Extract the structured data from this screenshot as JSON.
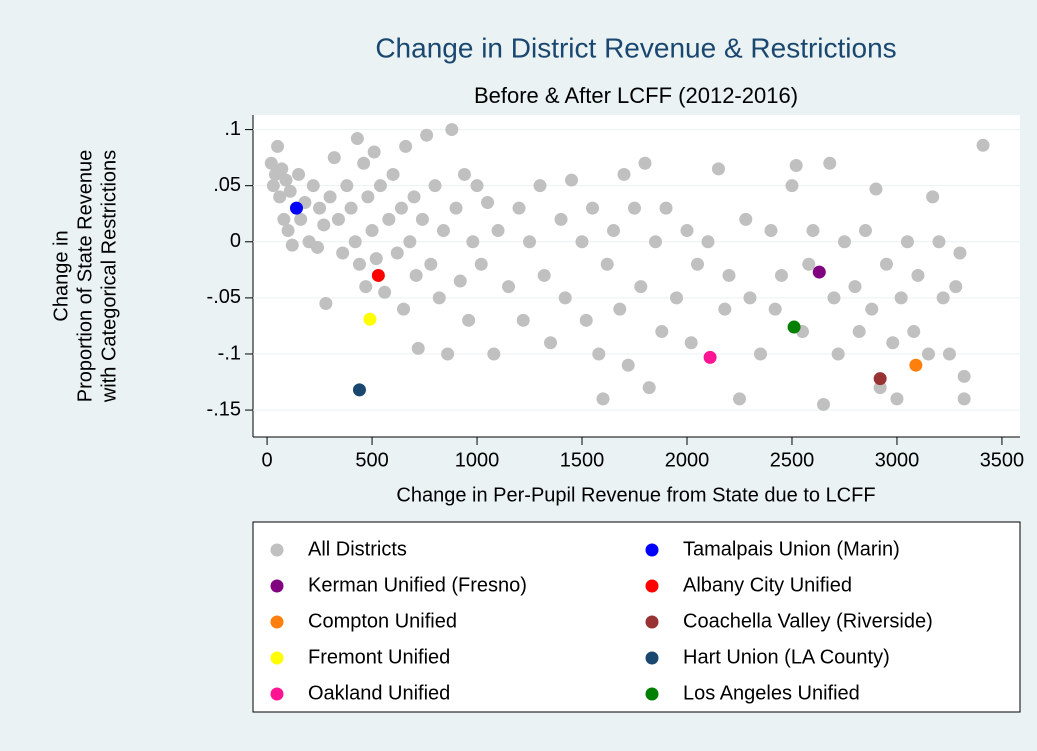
{
  "chart_data": {
    "type": "scatter",
    "title": "Change in District Revenue & Restrictions",
    "subtitle": "Before & After LCFF (2012-2016)",
    "xlabel": "Change in Per-Pupil Revenue from State due to LCFF",
    "ylabel": [
      "Change in",
      "Proportion of State Revenue",
      "with Categorical Restrictions"
    ],
    "xlim": [
      -67,
      3586
    ],
    "ylim": [
      -0.174,
      0.113
    ],
    "xticks": [
      0,
      500,
      1000,
      1500,
      2000,
      2500,
      3000,
      3500
    ],
    "yticks": [
      {
        "value": 0.1,
        "label": ".1"
      },
      {
        "value": 0.05,
        "label": ".05"
      },
      0,
      {
        "value": -0.05,
        "label": "-.05"
      },
      {
        "value": -0.1,
        "label": "-.1"
      },
      {
        "value": -0.15,
        "label": "-.15"
      }
    ],
    "grid": true,
    "legend": "bottom",
    "series": [
      {
        "name": "All Districts",
        "color": "#c0c0c0",
        "x": [
          20,
          30,
          40,
          50,
          60,
          70,
          80,
          90,
          100,
          110,
          120,
          150,
          160,
          180,
          200,
          220,
          240,
          250,
          270,
          280,
          300,
          320,
          340,
          360,
          380,
          400,
          420,
          430,
          440,
          460,
          470,
          480,
          500,
          510,
          520,
          540,
          560,
          580,
          600,
          620,
          640,
          650,
          660,
          680,
          700,
          710,
          720,
          740,
          760,
          780,
          800,
          820,
          840,
          860,
          880,
          900,
          920,
          940,
          960,
          980,
          1000,
          1020,
          1050,
          1080,
          1100,
          1150,
          1200,
          1220,
          1250,
          1300,
          1320,
          1350,
          1400,
          1420,
          1450,
          1500,
          1520,
          1550,
          1580,
          1600,
          1620,
          1650,
          1680,
          1700,
          1720,
          1750,
          1780,
          1800,
          1820,
          1850,
          1880,
          1900,
          1950,
          2000,
          2020,
          2050,
          2100,
          2150,
          2180,
          2200,
          2250,
          2280,
          2300,
          2350,
          2400,
          2420,
          2450,
          2500,
          2520,
          2550,
          2580,
          2600,
          2650,
          2680,
          2700,
          2720,
          2750,
          2800,
          2820,
          2850,
          2880,
          2900,
          2920,
          2950,
          2980,
          3000,
          3020,
          3050,
          3080,
          3100,
          3150,
          3170,
          3200,
          3220,
          3250,
          3280,
          3300,
          3320,
          3320,
          3410
        ],
        "values": [
          0.07,
          0.05,
          0.06,
          0.085,
          0.04,
          0.065,
          0.02,
          0.055,
          0.01,
          0.045,
          -0.003,
          0.06,
          0.02,
          0.035,
          0.0,
          0.05,
          -0.005,
          0.03,
          0.015,
          -0.055,
          0.04,
          0.075,
          0.02,
          -0.01,
          0.05,
          0.03,
          0.0,
          0.092,
          -0.02,
          0.07,
          -0.04,
          0.04,
          0.01,
          0.08,
          -0.015,
          0.05,
          -0.045,
          0.02,
          0.06,
          -0.01,
          0.03,
          -0.06,
          0.085,
          0.0,
          0.04,
          -0.03,
          -0.095,
          0.02,
          0.095,
          -0.02,
          0.05,
          -0.05,
          0.01,
          -0.1,
          0.1,
          0.03,
          -0.035,
          0.06,
          -0.07,
          0.0,
          0.05,
          -0.02,
          0.035,
          -0.1,
          0.01,
          -0.04,
          0.03,
          -0.07,
          0.0,
          0.05,
          -0.03,
          -0.09,
          0.02,
          -0.05,
          0.055,
          0.0,
          -0.07,
          0.03,
          -0.1,
          -0.14,
          -0.02,
          0.01,
          -0.06,
          0.06,
          -0.11,
          0.03,
          -0.04,
          0.07,
          -0.13,
          0.0,
          -0.08,
          0.03,
          -0.05,
          0.01,
          -0.09,
          -0.02,
          0.0,
          0.065,
          -0.06,
          -0.03,
          -0.14,
          0.02,
          -0.05,
          -0.1,
          0.01,
          -0.06,
          -0.03,
          0.05,
          0.068,
          -0.08,
          -0.02,
          0.01,
          -0.145,
          0.07,
          -0.05,
          -0.1,
          0.0,
          -0.04,
          -0.08,
          0.01,
          -0.06,
          0.047,
          -0.13,
          -0.02,
          -0.09,
          -0.14,
          -0.05,
          0.0,
          -0.08,
          -0.03,
          -0.1,
          0.04,
          0.0,
          -0.05,
          -0.1,
          -0.04,
          -0.01,
          -0.12,
          -0.14,
          0.086
        ]
      },
      {
        "name": "Tamalpais Union (Marin)",
        "color": "#0000ff",
        "x": [
          140
        ],
        "values": [
          0.03
        ]
      },
      {
        "name": "Kerman Unified (Fresno)",
        "color": "#800080",
        "x": [
          2630
        ],
        "values": [
          -0.027
        ]
      },
      {
        "name": "Albany City Unified",
        "color": "#ff0000",
        "x": [
          530
        ],
        "values": [
          -0.03
        ]
      },
      {
        "name": "Compton Unified",
        "color": "#ff7f0e",
        "x": [
          3090
        ],
        "values": [
          -0.11
        ]
      },
      {
        "name": "Coachella Valley (Riverside)",
        "color": "#993333",
        "x": [
          2920
        ],
        "values": [
          -0.122
        ]
      },
      {
        "name": "Fremont Unified",
        "color": "#ffff00",
        "x": [
          490
        ],
        "values": [
          -0.069
        ]
      },
      {
        "name": "Hart Union (LA County)",
        "color": "#1a476f",
        "x": [
          440
        ],
        "values": [
          -0.132
        ]
      },
      {
        "name": "Oakland Unified",
        "color": "#ff1493",
        "x": [
          2110
        ],
        "values": [
          -0.103
        ]
      },
      {
        "name": "Los Angeles Unified",
        "color": "#008000",
        "x": [
          2510
        ],
        "values": [
          -0.076
        ]
      }
    ]
  }
}
